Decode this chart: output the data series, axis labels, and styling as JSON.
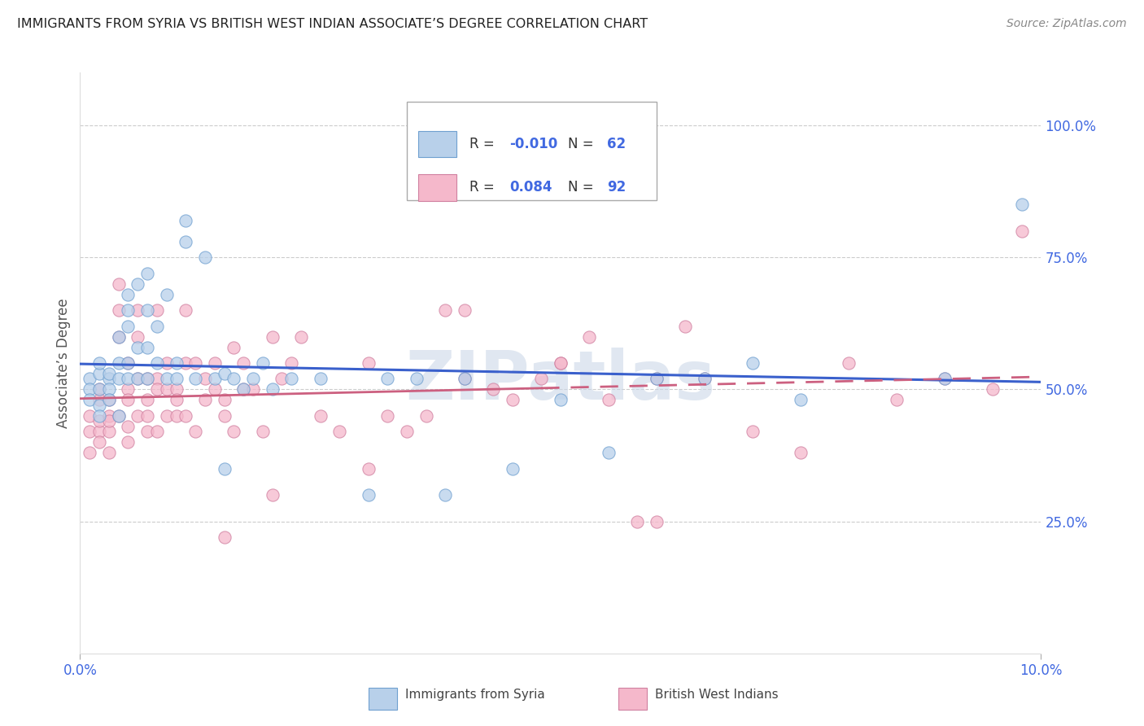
{
  "title": "IMMIGRANTS FROM SYRIA VS BRITISH WEST INDIAN ASSOCIATE’S DEGREE CORRELATION CHART",
  "source": "Source: ZipAtlas.com",
  "ylabel": "Associate’s Degree",
  "ytick_labels": [
    "25.0%",
    "50.0%",
    "75.0%",
    "100.0%"
  ],
  "ytick_values": [
    0.25,
    0.5,
    0.75,
    1.0
  ],
  "xmin": 0.0,
  "xmax": 0.1,
  "ymin": 0.0,
  "ymax": 1.1,
  "legend_r_syria": "-0.010",
  "legend_n_syria": "62",
  "legend_r_bwi": "0.084",
  "legend_n_bwi": "92",
  "color_syria_fill": "#b8d0ea",
  "color_syria_edge": "#6fa0d0",
  "color_bwi_fill": "#f5b8cb",
  "color_bwi_edge": "#d080a0",
  "color_line_syria": "#3a60cc",
  "color_line_bwi": "#cc6080",
  "color_axis_text": "#4169e1",
  "color_watermark": "#ccd8e8",
  "syria_x": [
    0.001,
    0.001,
    0.001,
    0.002,
    0.002,
    0.002,
    0.002,
    0.002,
    0.003,
    0.003,
    0.003,
    0.003,
    0.004,
    0.004,
    0.004,
    0.004,
    0.005,
    0.005,
    0.005,
    0.005,
    0.005,
    0.006,
    0.006,
    0.006,
    0.007,
    0.007,
    0.007,
    0.007,
    0.008,
    0.008,
    0.009,
    0.009,
    0.01,
    0.01,
    0.011,
    0.011,
    0.012,
    0.013,
    0.014,
    0.015,
    0.015,
    0.016,
    0.017,
    0.018,
    0.019,
    0.02,
    0.022,
    0.025,
    0.03,
    0.032,
    0.035,
    0.038,
    0.04,
    0.045,
    0.05,
    0.055,
    0.06,
    0.065,
    0.07,
    0.075,
    0.09,
    0.098
  ],
  "syria_y": [
    0.52,
    0.5,
    0.48,
    0.53,
    0.5,
    0.47,
    0.55,
    0.45,
    0.52,
    0.53,
    0.5,
    0.48,
    0.6,
    0.52,
    0.55,
    0.45,
    0.65,
    0.62,
    0.52,
    0.55,
    0.68,
    0.7,
    0.58,
    0.52,
    0.72,
    0.65,
    0.58,
    0.52,
    0.62,
    0.55,
    0.68,
    0.52,
    0.52,
    0.55,
    0.78,
    0.82,
    0.52,
    0.75,
    0.52,
    0.53,
    0.35,
    0.52,
    0.5,
    0.52,
    0.55,
    0.5,
    0.52,
    0.52,
    0.3,
    0.52,
    0.52,
    0.3,
    0.52,
    0.35,
    0.48,
    0.38,
    0.52,
    0.52,
    0.55,
    0.48,
    0.52,
    0.85
  ],
  "bwi_x": [
    0.001,
    0.001,
    0.001,
    0.002,
    0.002,
    0.002,
    0.002,
    0.002,
    0.003,
    0.003,
    0.003,
    0.003,
    0.003,
    0.004,
    0.004,
    0.004,
    0.004,
    0.005,
    0.005,
    0.005,
    0.005,
    0.005,
    0.006,
    0.006,
    0.006,
    0.006,
    0.007,
    0.007,
    0.007,
    0.007,
    0.008,
    0.008,
    0.008,
    0.008,
    0.009,
    0.009,
    0.009,
    0.01,
    0.01,
    0.01,
    0.011,
    0.011,
    0.011,
    0.012,
    0.012,
    0.013,
    0.013,
    0.014,
    0.014,
    0.015,
    0.015,
    0.016,
    0.016,
    0.017,
    0.017,
    0.018,
    0.019,
    0.02,
    0.021,
    0.022,
    0.023,
    0.025,
    0.027,
    0.03,
    0.032,
    0.034,
    0.036,
    0.038,
    0.04,
    0.043,
    0.045,
    0.048,
    0.05,
    0.053,
    0.055,
    0.058,
    0.06,
    0.063,
    0.065,
    0.07,
    0.075,
    0.08,
    0.085,
    0.09,
    0.095,
    0.098,
    0.04,
    0.05,
    0.06,
    0.03,
    0.02,
    0.015
  ],
  "bwi_y": [
    0.42,
    0.45,
    0.38,
    0.5,
    0.42,
    0.4,
    0.48,
    0.44,
    0.45,
    0.42,
    0.48,
    0.38,
    0.44,
    0.65,
    0.7,
    0.6,
    0.45,
    0.5,
    0.55,
    0.48,
    0.43,
    0.4,
    0.65,
    0.52,
    0.45,
    0.6,
    0.52,
    0.45,
    0.48,
    0.42,
    0.52,
    0.42,
    0.5,
    0.65,
    0.5,
    0.45,
    0.55,
    0.5,
    0.45,
    0.48,
    0.55,
    0.65,
    0.45,
    0.55,
    0.42,
    0.52,
    0.48,
    0.5,
    0.55,
    0.45,
    0.48,
    0.42,
    0.58,
    0.55,
    0.5,
    0.5,
    0.42,
    0.6,
    0.52,
    0.55,
    0.6,
    0.45,
    0.42,
    0.55,
    0.45,
    0.42,
    0.45,
    0.65,
    0.52,
    0.5,
    0.48,
    0.52,
    0.55,
    0.6,
    0.48,
    0.25,
    0.52,
    0.62,
    0.52,
    0.42,
    0.38,
    0.55,
    0.48,
    0.52,
    0.5,
    0.8,
    0.65,
    0.55,
    0.25,
    0.35,
    0.3,
    0.22
  ]
}
